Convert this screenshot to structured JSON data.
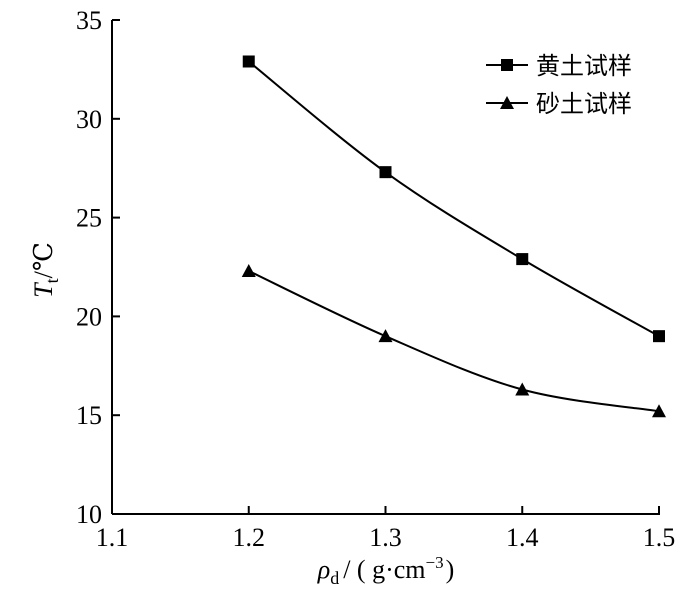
{
  "chart_data": {
    "type": "line",
    "title": "",
    "x": [
      1.2,
      1.3,
      1.4,
      1.5
    ],
    "xlim": [
      1.1,
      1.5
    ],
    "ylim": [
      10,
      35
    ],
    "xticks": [
      "1.1",
      "1.2",
      "1.3",
      "1.4",
      "1.5"
    ],
    "yticks": [
      "10",
      "15",
      "20",
      "25",
      "30",
      "35"
    ],
    "xticks_values": [
      1.1,
      1.2,
      1.3,
      1.4,
      1.5
    ],
    "yticks_values": [
      10,
      15,
      20,
      25,
      30,
      35
    ],
    "grid": false,
    "legend_position": "top-right",
    "xlabel": {
      "symbol": "ρ",
      "subscript": "d",
      "unit": "/ ( g·cm",
      "unit_sup": "−3",
      "unit_close": ")"
    },
    "ylabel": {
      "symbol": "T",
      "subscript": "t",
      "unit": "/℃"
    },
    "series": [
      {
        "name": "黄土试样",
        "marker": "square",
        "color": "#000000",
        "values": [
          32.9,
          27.3,
          22.9,
          19.0
        ]
      },
      {
        "name": "砂土试样",
        "marker": "triangle",
        "color": "#000000",
        "values": [
          22.3,
          19.0,
          16.3,
          15.2
        ]
      }
    ]
  }
}
